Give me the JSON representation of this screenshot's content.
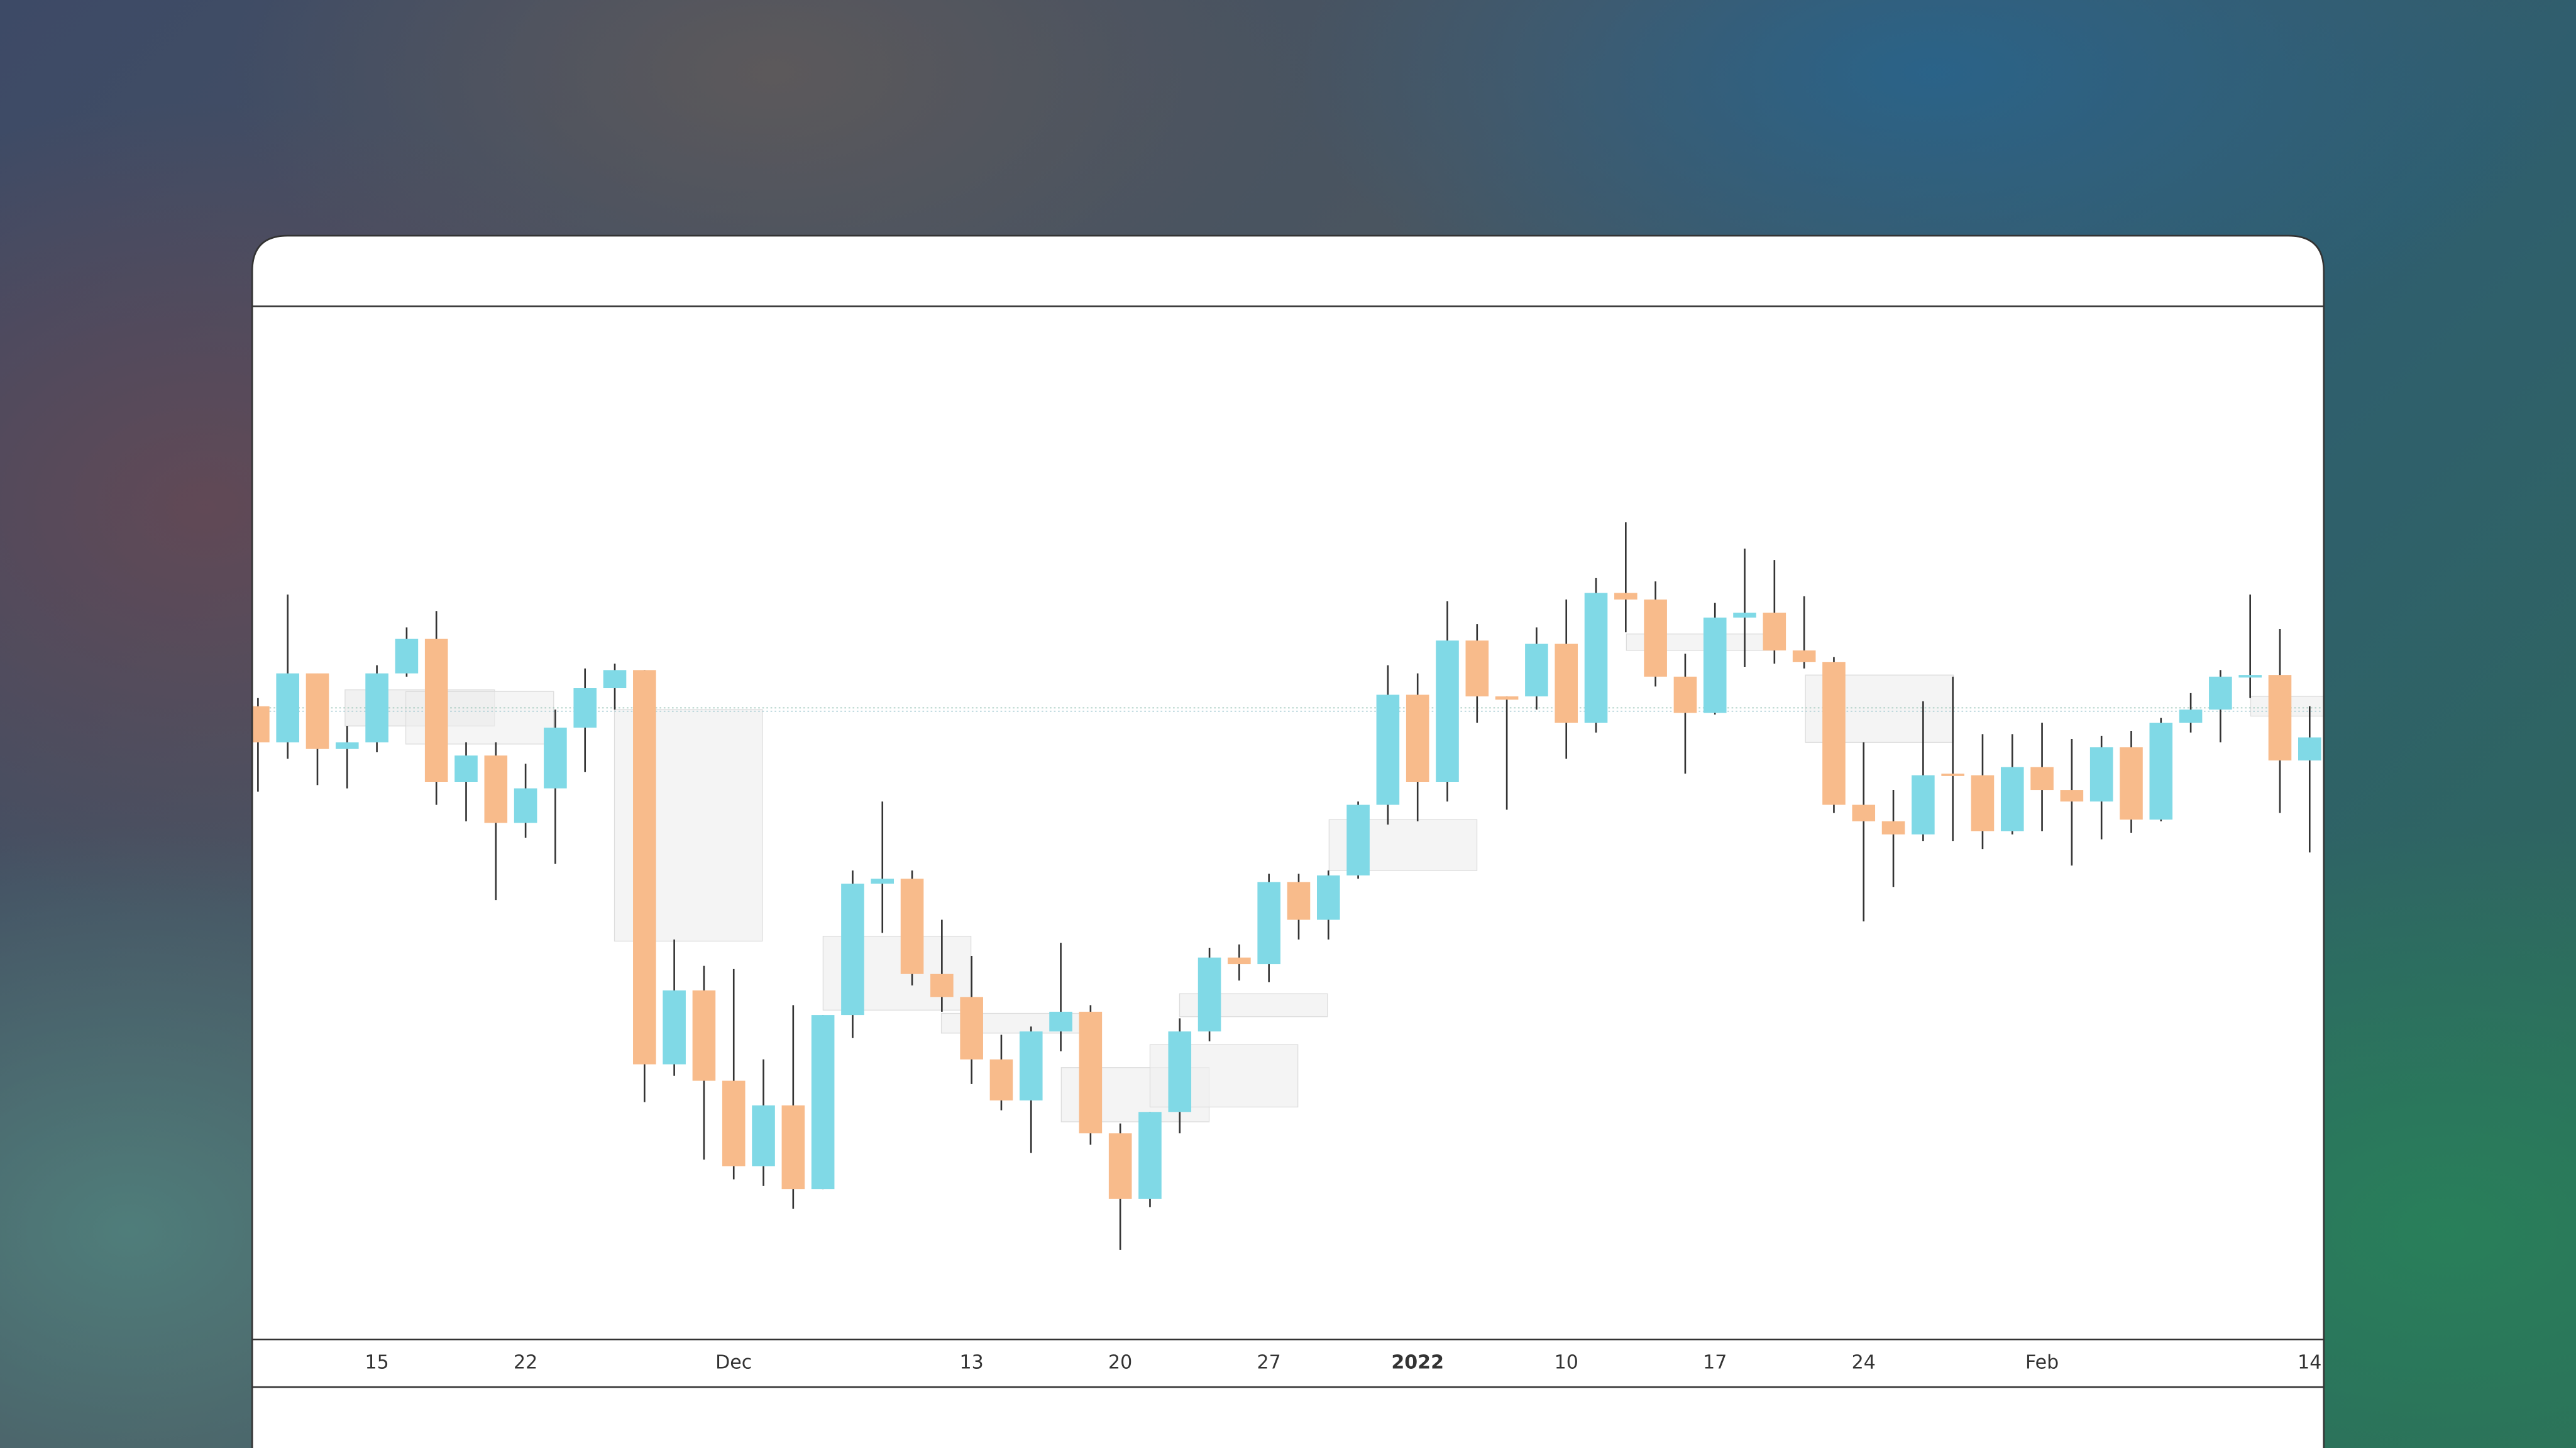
{
  "chart_data": {
    "type": "candlestick",
    "categories": [
      null,
      null,
      null,
      null,
      "15",
      null,
      null,
      null,
      null,
      "22",
      null,
      null,
      null,
      null,
      null,
      null,
      "Dec",
      null,
      null,
      null,
      null,
      null,
      null,
      null,
      "13",
      null,
      null,
      null,
      null,
      "20",
      null,
      null,
      null,
      null,
      "27",
      null,
      null,
      null,
      null,
      "2022",
      null,
      null,
      null,
      null,
      "10",
      null,
      null,
      null,
      null,
      "17",
      null,
      null,
      null,
      null,
      "24",
      null,
      null,
      null,
      null,
      null,
      "Feb",
      null,
      null,
      null,
      null,
      null,
      null,
      null,
      null,
      "14"
    ],
    "open": [
      470,
      448,
      490,
      444,
      448,
      490,
      511,
      424,
      440,
      399,
      420,
      457,
      481,
      492,
      252,
      297,
      242,
      190,
      227,
      176,
      282,
      362,
      365,
      307,
      293,
      255,
      230,
      272,
      284,
      210,
      170,
      223,
      272,
      317,
      313,
      363,
      340,
      367,
      410,
      477,
      424,
      510,
      476,
      476,
      508,
      460,
      539,
      535,
      488,
      466,
      524,
      527,
      504,
      497,
      410,
      400,
      392,
      429,
      428,
      394,
      433,
      419,
      412,
      445,
      401,
      460,
      468,
      488,
      489,
      437
    ],
    "high": [
      475,
      538,
      490,
      458,
      495,
      518,
      528,
      448,
      448,
      435,
      468,
      493,
      496,
      492,
      328,
      312,
      310,
      255,
      288,
      282,
      370,
      412,
      370,
      340,
      318,
      270,
      275,
      326,
      288,
      216,
      223,
      280,
      323,
      325,
      368,
      368,
      370,
      412,
      495,
      490,
      534,
      520,
      476,
      518,
      535,
      548,
      582,
      546,
      502,
      533,
      566,
      559,
      537,
      500,
      448,
      419,
      473,
      488,
      453,
      453,
      460,
      450,
      452,
      455,
      463,
      478,
      492,
      538,
      517,
      470
    ],
    "low": [
      418,
      438,
      422,
      420,
      442,
      488,
      410,
      400,
      352,
      390,
      374,
      430,
      468,
      229,
      245,
      194,
      182,
      178,
      164,
      176,
      268,
      332,
      300,
      284,
      240,
      224,
      198,
      260,
      203,
      139,
      165,
      210,
      266,
      303,
      302,
      328,
      328,
      365,
      398,
      400,
      412,
      460,
      407,
      468,
      438,
      454,
      515,
      482,
      429,
      465,
      494,
      496,
      493,
      405,
      339,
      360,
      388,
      388,
      383,
      392,
      394,
      373,
      389,
      393,
      400,
      454,
      448,
      475,
      405,
      381
    ],
    "close": [
      448,
      490,
      444,
      448,
      490,
      511,
      424,
      440,
      399,
      420,
      457,
      481,
      492,
      252,
      297,
      242,
      190,
      227,
      176,
      282,
      362,
      365,
      307,
      293,
      255,
      230,
      272,
      284,
      210,
      170,
      223,
      272,
      317,
      313,
      363,
      340,
      367,
      410,
      477,
      424,
      510,
      476,
      474,
      508,
      460,
      539,
      535,
      488,
      466,
      524,
      527,
      504,
      497,
      410,
      400,
      392,
      428,
      428,
      394,
      433,
      419,
      412,
      445,
      401,
      460,
      468,
      488,
      489,
      437,
      451
    ],
    "ylim": [
      85,
      713
    ],
    "up_color": "#80d9e6",
    "down_color": "#f8bb8b"
  }
}
